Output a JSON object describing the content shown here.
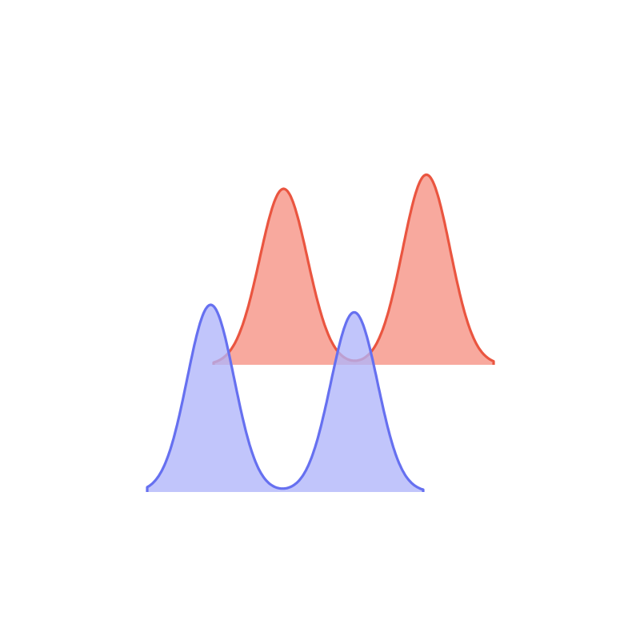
{
  "chart_data": {
    "type": "area",
    "title": "",
    "xlabel": "",
    "ylabel": "",
    "grid": false,
    "legend": "none",
    "axes_visible": false,
    "series": [
      {
        "color": "#EA5540",
        "fill": "#F8A99E",
        "x_range": [
          0,
          10
        ],
        "peaks": [
          {
            "x": 2.5,
            "height": 1.0
          },
          {
            "x": 7.6,
            "height": 1.08
          }
        ],
        "sigma": 0.85
      },
      {
        "color": "#6670F0",
        "fill": "#B0B5FA",
        "x_range": [
          0,
          10
        ],
        "peaks": [
          {
            "x": 2.3,
            "height": 1.0
          },
          {
            "x": 7.5,
            "height": 0.96
          }
        ],
        "sigma": 0.85
      }
    ]
  }
}
